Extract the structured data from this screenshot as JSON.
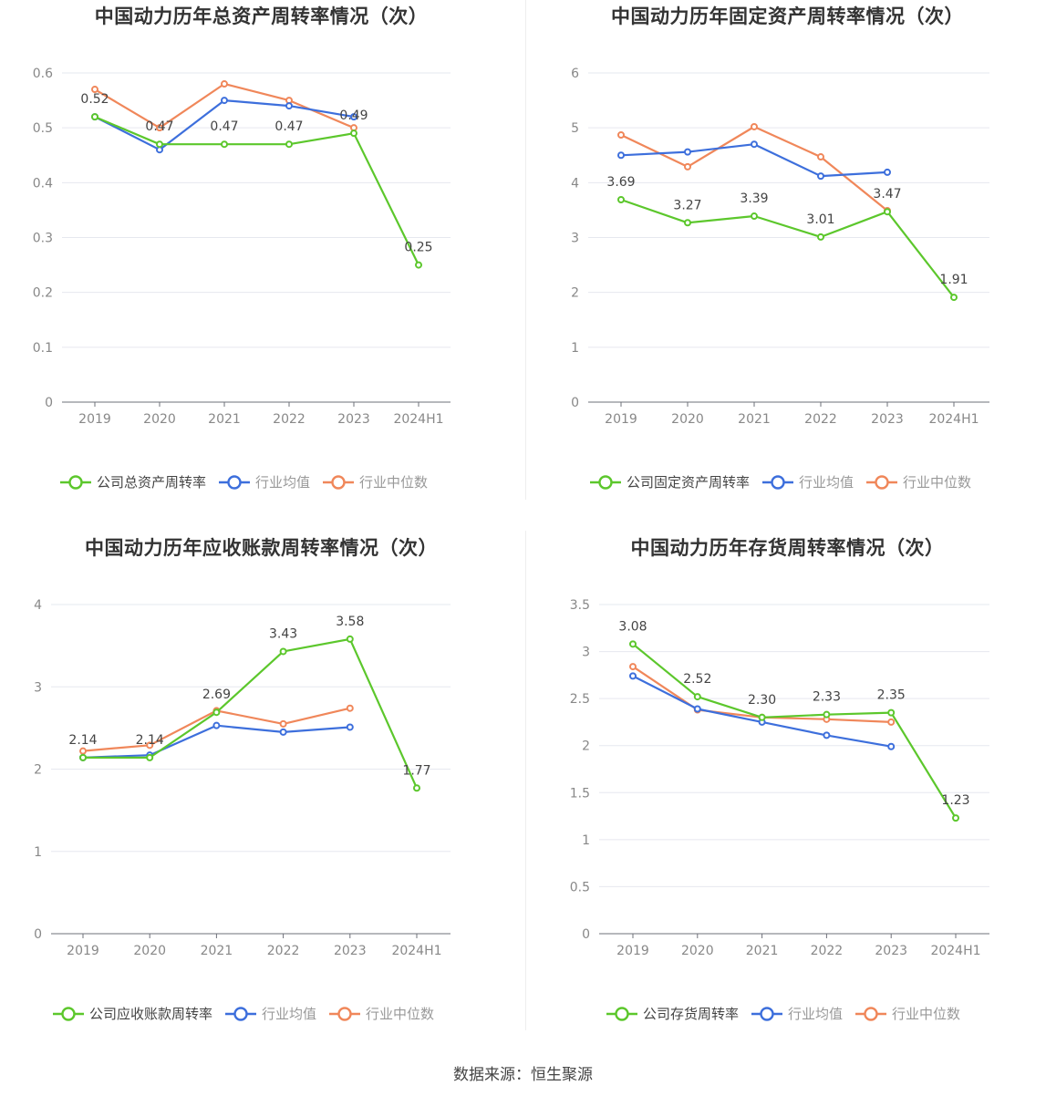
{
  "colors": {
    "company": "#5cc72c",
    "industry_avg": "#3d6fdc",
    "industry_median": "#f0875a"
  },
  "source_text": "数据来源：恒生聚源",
  "chart_data": [
    {
      "type": "line",
      "title": "中国动力历年总资产周转率情况（次）",
      "categories": [
        "2019",
        "2020",
        "2021",
        "2022",
        "2023",
        "2024H1"
      ],
      "ylim": [
        0,
        0.6
      ],
      "yticks": [
        "0",
        "0.1",
        "0.2",
        "0.3",
        "0.4",
        "0.5",
        "0.6"
      ],
      "ytick_values": [
        0,
        0.1,
        0.2,
        0.3,
        0.4,
        0.5,
        0.6
      ],
      "grid": true,
      "legend_position": "bottom",
      "series": [
        {
          "name": "公司总资产周转率",
          "key": "company",
          "values": [
            0.52,
            0.47,
            0.47,
            0.47,
            0.49,
            0.25
          ],
          "labels": [
            "0.52",
            "0.47",
            "0.47",
            "0.47",
            "0.49",
            "0.25"
          ]
        },
        {
          "name": "行业均值",
          "key": "industry_avg",
          "values": [
            0.52,
            0.46,
            0.55,
            0.54,
            0.52,
            null
          ]
        },
        {
          "name": "行业中位数",
          "key": "industry_median",
          "values": [
            0.57,
            0.5,
            0.58,
            0.55,
            0.5,
            null
          ]
        }
      ]
    },
    {
      "type": "line",
      "title": "中国动力历年固定资产周转率情况（次）",
      "categories": [
        "2019",
        "2020",
        "2021",
        "2022",
        "2023",
        "2024H1"
      ],
      "ylim": [
        0,
        6
      ],
      "yticks": [
        "0",
        "1",
        "2",
        "3",
        "4",
        "5",
        "6"
      ],
      "ytick_values": [
        0,
        1,
        2,
        3,
        4,
        5,
        6
      ],
      "grid": true,
      "legend_position": "bottom",
      "series": [
        {
          "name": "公司固定资产周转率",
          "key": "company",
          "values": [
            3.69,
            3.27,
            3.39,
            3.01,
            3.47,
            1.91
          ],
          "labels": [
            "3.69",
            "3.27",
            "3.39",
            "3.01",
            "3.47",
            "1.91"
          ]
        },
        {
          "name": "行业均值",
          "key": "industry_avg",
          "values": [
            4.5,
            4.56,
            4.7,
            4.12,
            4.19,
            null
          ]
        },
        {
          "name": "行业中位数",
          "key": "industry_median",
          "values": [
            4.87,
            4.29,
            5.02,
            4.47,
            3.49,
            null
          ]
        }
      ]
    },
    {
      "type": "line",
      "title": "中国动力历年应收账款周转率情况（次）",
      "categories": [
        "2019",
        "2020",
        "2021",
        "2022",
        "2023",
        "2024H1"
      ],
      "ylim": [
        0,
        4
      ],
      "yticks": [
        "0",
        "1",
        "2",
        "3",
        "4"
      ],
      "ytick_values": [
        0,
        1,
        2,
        3,
        4
      ],
      "grid": true,
      "legend_position": "bottom",
      "series": [
        {
          "name": "公司应收账款周转率",
          "key": "company",
          "values": [
            2.14,
            2.14,
            2.69,
            3.43,
            3.58,
            1.77
          ],
          "labels": [
            "2.14",
            "2.14",
            "2.69",
            "3.43",
            "3.58",
            "1.77"
          ]
        },
        {
          "name": "行业均值",
          "key": "industry_avg",
          "values": [
            2.14,
            2.17,
            2.53,
            2.45,
            2.51,
            null
          ]
        },
        {
          "name": "行业中位数",
          "key": "industry_median",
          "values": [
            2.22,
            2.29,
            2.71,
            2.55,
            2.74,
            null
          ]
        }
      ]
    },
    {
      "type": "line",
      "title": "中国动力历年存货周转率情况（次）",
      "categories": [
        "2019",
        "2020",
        "2021",
        "2022",
        "2023",
        "2024H1"
      ],
      "ylim": [
        0,
        3.5
      ],
      "yticks": [
        "0",
        "0.5",
        "1",
        "1.5",
        "2",
        "2.5",
        "3",
        "3.5"
      ],
      "ytick_values": [
        0,
        0.5,
        1,
        1.5,
        2,
        2.5,
        3,
        3.5
      ],
      "grid": true,
      "legend_position": "bottom",
      "series": [
        {
          "name": "公司存货周转率",
          "key": "company",
          "values": [
            3.08,
            2.52,
            2.3,
            2.33,
            2.35,
            1.23
          ],
          "labels": [
            "3.08",
            "2.52",
            "2.30",
            "2.33",
            "2.35",
            "1.23"
          ]
        },
        {
          "name": "行业均值",
          "key": "industry_avg",
          "values": [
            2.74,
            2.39,
            2.25,
            2.11,
            1.99,
            null
          ]
        },
        {
          "name": "行业中位数",
          "key": "industry_median",
          "values": [
            2.84,
            2.38,
            2.3,
            2.28,
            2.25,
            null
          ]
        }
      ]
    }
  ]
}
